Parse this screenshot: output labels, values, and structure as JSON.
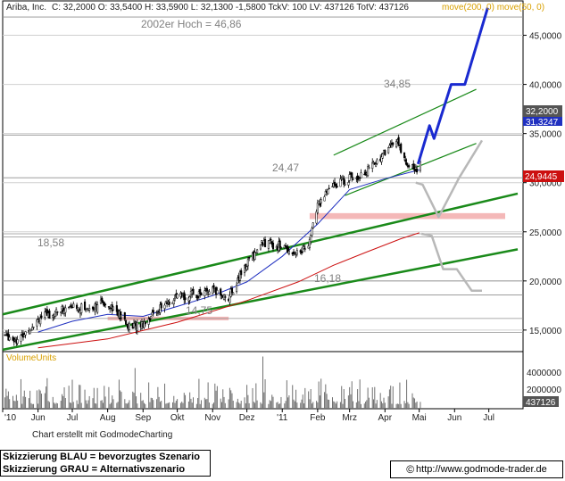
{
  "header": {
    "title": "Ariba, Inc.",
    "quote": "C: 32,2000  O: 33,5400  H: 33,5900  L: 32,1300  -1,5800  TckV: 100  LV: 437126  TotV: 437126",
    "ma_labels": "move(200, 0)  move(50, 0)"
  },
  "annotations": {
    "high_2002": "2002er Hoch = 46,86",
    "peak": "34,85",
    "level_2447": "24,47",
    "level_1858": "18,58",
    "level_1618": "16,18",
    "level_1475": "14,75"
  },
  "price_boxes": {
    "last": "32,2000",
    "ma50": "31,3247",
    "ma200": "24,9445"
  },
  "volume": {
    "label": "VolumeUnits",
    "ticks": [
      "4000000",
      "2000000"
    ],
    "last": "437126"
  },
  "credit": "Chart erstellt mit GodmodeCharting",
  "legend": {
    "line1": "Skizzierung BLAU = bevorzugtes Szenario",
    "line2": "Skizzierung GRAU = Alternativszenario"
  },
  "website": {
    "symbol": "©",
    "url": "http://www.godmode-trader.de"
  },
  "colors": {
    "candles": "#000000",
    "ma50": "#2030c0",
    "ma200": "#cc1010",
    "trend_green": "#1a8a1a",
    "scenario_blue": "#1a2ad0",
    "scenario_gray": "#b8b8b8",
    "support_zone": "#f4b8b8",
    "price_tag_last": "#555555",
    "price_tag_ma50": "#2030c0",
    "price_tag_ma200": "#cc1010",
    "ma_label_text": "#d8a000"
  },
  "chart_data": {
    "type": "candlestick",
    "title": "Ariba, Inc.",
    "y_axis": {
      "ticks": [
        15,
        20,
        25,
        30,
        35,
        40,
        45
      ],
      "tick_labels": [
        "15,0000",
        "20,0000",
        "25,0000",
        "30,0000",
        "35,0000",
        "40,0000",
        "45,0000"
      ],
      "ylim": [
        12.9,
        48.5
      ]
    },
    "x_axis": {
      "tick_labels": [
        "'10",
        "Jun",
        "Jul",
        "Aug",
        "Sep",
        "Okt",
        "Nov",
        "Dez",
        "'11",
        "Feb",
        "Mrz",
        "Apr",
        "Mai",
        "Jun",
        "Jul"
      ],
      "start": "2010-05-01",
      "end": "2011-07-31"
    },
    "horizontal_levels": [
      46.86,
      34.85,
      30.5,
      24.8,
      24.47,
      20,
      18.58,
      16.18,
      14.75
    ],
    "support_zone": {
      "from": 26.3,
      "to": 26.9,
      "start": "2011-01-25"
    },
    "support_zone_2": {
      "from": 16.18,
      "to": 16.18,
      "start": "2010-08-01",
      "end": "2010-11-15"
    },
    "trend_channels": [
      {
        "name": "long-term upper",
        "points": [
          [
            "2010-05-01",
            16.6
          ],
          [
            "2011-06-20",
            27.9
          ]
        ]
      },
      {
        "name": "long-term lower",
        "points": [
          [
            "2010-05-01",
            13.0
          ],
          [
            "2011-06-20",
            22.4
          ]
        ]
      },
      {
        "name": "short-term upper",
        "points": [
          [
            "2011-02-15",
            32.8
          ],
          [
            "2011-06-20",
            39.5
          ]
        ]
      },
      {
        "name": "short-term lower",
        "points": [
          [
            "2011-02-25",
            28.7
          ],
          [
            "2011-06-20",
            34.0
          ]
        ]
      }
    ],
    "scenario_blue": [
      [
        "2011-04-30",
        31.9
      ],
      [
        "2011-05-10",
        35.8
      ],
      [
        "2011-05-14",
        34.5
      ],
      [
        "2011-05-29",
        40.0
      ],
      [
        "2011-06-10",
        40.0
      ],
      [
        "2011-06-30",
        47.8
      ]
    ],
    "scenario_gray_paths": [
      [
        [
          "2011-04-28",
          30.0
        ],
        [
          "2011-05-04",
          29.8
        ],
        [
          "2011-05-18",
          26.5
        ],
        [
          "2011-06-05",
          30.5
        ],
        [
          "2011-06-25",
          34.3
        ]
      ],
      [
        [
          "2011-05-03",
          24.8
        ],
        [
          "2011-05-12",
          24.6
        ],
        [
          "2011-05-22",
          21.2
        ],
        [
          "2011-06-03",
          21.2
        ],
        [
          "2011-06-16",
          19.0
        ],
        [
          "2011-06-25",
          19.0
        ]
      ]
    ],
    "series": [
      {
        "name": "Ariba, Inc.",
        "kind": "price_close",
        "x": [
          "2010-05-03",
          "2010-05-15",
          "2010-06-01",
          "2010-06-20",
          "2010-07-01",
          "2010-07-15",
          "2010-08-01",
          "2010-08-20",
          "2010-09-01",
          "2010-09-15",
          "2010-10-01",
          "2010-10-15",
          "2010-11-01",
          "2010-11-15",
          "2010-12-01",
          "2010-12-15",
          "2011-01-01",
          "2011-01-15",
          "2011-01-25",
          "2011-02-01",
          "2011-02-15",
          "2011-03-01",
          "2011-03-15",
          "2011-04-01",
          "2011-04-10",
          "2011-04-20",
          "2011-04-28",
          "2011-05-02"
        ],
        "y": [
          14.5,
          14.0,
          16.2,
          17.0,
          17.4,
          17.2,
          17.9,
          15.3,
          15.7,
          17.2,
          18.3,
          18.6,
          19.0,
          18.3,
          21.8,
          23.9,
          23.5,
          22.8,
          24.0,
          27.8,
          29.8,
          30.5,
          31.0,
          33.1,
          34.5,
          32.0,
          31.3,
          32.2
        ]
      },
      {
        "name": "move(50, 0)",
        "x": [
          "2010-06-01",
          "2010-07-01",
          "2010-08-01",
          "2010-09-01",
          "2010-10-01",
          "2010-11-01",
          "2010-12-01",
          "2011-01-01",
          "2011-02-01",
          "2011-03-01",
          "2011-04-01",
          "2011-05-01"
        ],
        "y": [
          14.8,
          15.9,
          16.6,
          16.4,
          17.4,
          18.5,
          19.9,
          22.5,
          25.8,
          29.3,
          30.4,
          31.3
        ]
      },
      {
        "name": "move(200, 0)",
        "x": [
          "2010-06-01",
          "2010-08-01",
          "2010-10-01",
          "2010-12-01",
          "2011-01-15",
          "2011-02-15",
          "2011-03-15",
          "2011-04-15",
          "2011-05-01"
        ],
        "y": [
          13.2,
          14.1,
          15.8,
          18.0,
          19.9,
          21.6,
          22.9,
          24.3,
          24.9
        ]
      },
      {
        "name": "VolumeUnits",
        "kind": "volume",
        "x": [
          "2010-05-01",
          "2011-05-02"
        ],
        "y_range": [
          0,
          4800000
        ],
        "last": 437126
      }
    ]
  }
}
